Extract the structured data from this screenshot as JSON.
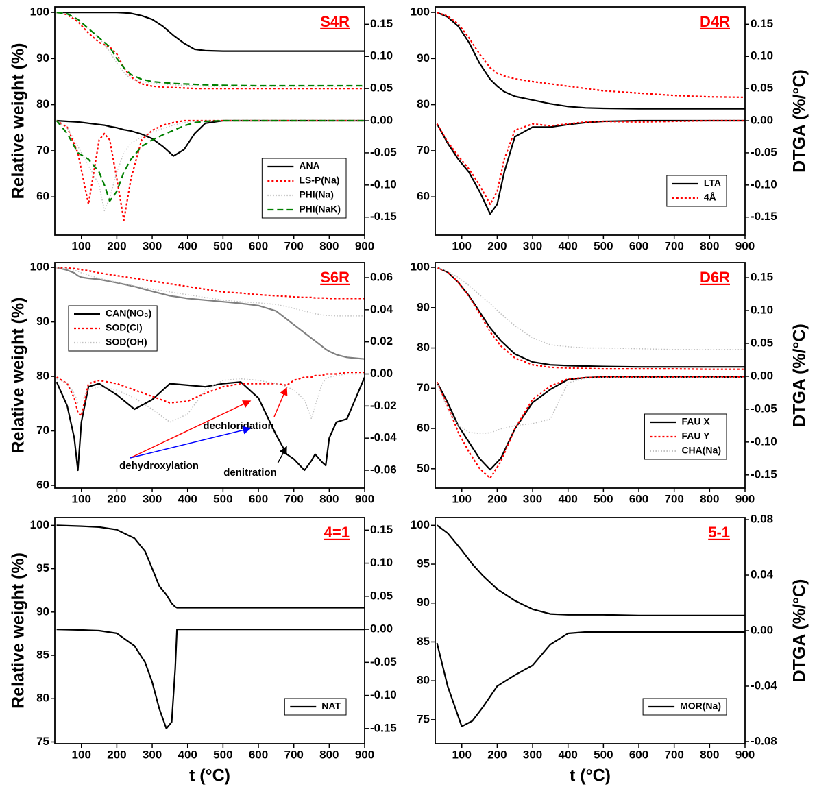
{
  "chart_data": [
    {
      "type": "line",
      "title": "S4R",
      "ylabel": "Relative weight (%)",
      "legend": "lower right",
      "xlim": [
        25,
        900
      ],
      "xticks": [
        100,
        200,
        300,
        400,
        500,
        600,
        700,
        800,
        900
      ],
      "ylim": [
        51.7,
        101.2
      ],
      "yticks": [
        60,
        70,
        80,
        90,
        100
      ],
      "y2lim": [
        -0.178,
        0.177
      ],
      "y2ticks": [
        -0.15,
        {
          "value": -0.1,
          "label": "-0.10"
        },
        -0.05,
        {
          "value": 0,
          "label": "0.00"
        },
        0.05,
        {
          "value": 0.1,
          "label": "0.10"
        },
        0.15
      ],
      "x": [
        30,
        60,
        90,
        120,
        150,
        165,
        180,
        200,
        220,
        240,
        270,
        300,
        330,
        360,
        390,
        420,
        450,
        500,
        600,
        700,
        800,
        900
      ],
      "series": [
        {
          "name": "ANA",
          "color": "#000000",
          "style": "solid",
          "values": [
            100,
            100,
            100,
            100,
            100,
            100,
            100,
            100,
            99.9,
            99.8,
            99.3,
            98.5,
            97,
            95,
            93.3,
            92,
            91.7,
            91.6,
            91.6,
            91.6,
            91.6,
            91.6
          ],
          "dtg_values": [
            0,
            -0.001,
            -0.002,
            -0.004,
            -0.006,
            -0.007,
            -0.009,
            -0.011,
            -0.014,
            -0.016,
            -0.021,
            -0.028,
            -0.04,
            -0.055,
            -0.045,
            -0.02,
            -0.004,
            0,
            0,
            0,
            0,
            0
          ]
        },
        {
          "name": "LS-P(Na)",
          "color": "#ff0000",
          "style": "dot",
          "values": [
            100,
            99.5,
            98,
            95.5,
            93.5,
            93,
            92.5,
            91,
            88,
            86,
            84.5,
            84,
            83.8,
            83.7,
            83.6,
            83.5,
            83.5,
            83.5,
            83.5,
            83.5,
            83.5,
            83.5
          ],
          "dtg_values": [
            0,
            -0.01,
            -0.05,
            -0.13,
            -0.03,
            -0.02,
            -0.03,
            -0.09,
            -0.155,
            -0.09,
            -0.03,
            -0.015,
            -0.007,
            -0.003,
            0,
            0,
            0,
            0,
            0,
            0,
            0,
            0
          ]
        },
        {
          "name": "PHI(Na)",
          "color": "#c0c0c0",
          "style": "fine",
          "values": [
            100,
            99.7,
            98.5,
            96.5,
            94.5,
            93,
            91.5,
            89,
            87,
            85.5,
            85,
            84.7,
            84.5,
            84.3,
            84.2,
            84.1,
            84,
            84,
            84,
            84,
            84,
            84
          ],
          "dtg_values": [
            0,
            -0.01,
            -0.04,
            -0.07,
            -0.1,
            -0.14,
            -0.12,
            -0.08,
            -0.05,
            -0.035,
            -0.025,
            -0.018,
            -0.012,
            -0.007,
            -0.003,
            -0.001,
            0,
            0,
            0,
            0,
            0,
            0
          ]
        },
        {
          "name": "PHI(NaK)",
          "color": "#008000",
          "style": "dash",
          "values": [
            100,
            99.7,
            98.5,
            96.5,
            94.5,
            93.5,
            92.5,
            90,
            88,
            86.5,
            85.5,
            85,
            84.8,
            84.6,
            84.5,
            84.4,
            84.3,
            84.2,
            84.1,
            84.1,
            84.1,
            84.1
          ],
          "dtg_values": [
            0,
            -0.02,
            -0.05,
            -0.06,
            -0.08,
            -0.1,
            -0.125,
            -0.11,
            -0.08,
            -0.06,
            -0.04,
            -0.03,
            -0.022,
            -0.015,
            -0.008,
            -0.003,
            -0.001,
            0,
            0,
            0,
            0,
            0
          ]
        }
      ]
    },
    {
      "type": "line",
      "title": "D4R",
      "y2label": "DTGA (%/°C)",
      "legend": "lower right",
      "xlim": [
        25,
        900
      ],
      "xticks": [
        100,
        200,
        300,
        400,
        500,
        600,
        700,
        800,
        900
      ],
      "ylim": [
        51.7,
        101.2
      ],
      "yticks": [
        60,
        70,
        80,
        90,
        100
      ],
      "y2lim": [
        -0.178,
        0.177
      ],
      "y2ticks": [
        -0.15,
        {
          "value": -0.1,
          "label": "-0.10"
        },
        -0.05,
        {
          "value": 0,
          "label": "0.00"
        },
        0.05,
        {
          "value": 0.1,
          "label": "0.10"
        },
        0.15
      ],
      "x": [
        30,
        60,
        90,
        120,
        150,
        180,
        200,
        220,
        250,
        300,
        350,
        400,
        450,
        500,
        600,
        700,
        800,
        900
      ],
      "series": [
        {
          "name": "LTA",
          "color": "#000000",
          "style": "solid",
          "values": [
            100,
            99,
            97,
            93.5,
            89,
            85.5,
            84,
            82.8,
            81.8,
            81,
            80.2,
            79.6,
            79.3,
            79.2,
            79.1,
            79.1,
            79.1,
            79.1
          ],
          "dtg_values": [
            -0.005,
            -0.035,
            -0.06,
            -0.08,
            -0.11,
            -0.145,
            -0.13,
            -0.08,
            -0.025,
            -0.01,
            -0.01,
            -0.006,
            -0.003,
            -0.001,
            0,
            0,
            0,
            0
          ]
        },
        {
          "name": "4Å",
          "color": "#ff0000",
          "style": "dot",
          "values": [
            100,
            99.2,
            97.5,
            94.5,
            91,
            88,
            86.8,
            86.2,
            85.6,
            85,
            84.5,
            84,
            83.5,
            83,
            82.5,
            82,
            81.7,
            81.6
          ],
          "dtg_values": [
            -0.005,
            -0.033,
            -0.055,
            -0.075,
            -0.1,
            -0.13,
            -0.11,
            -0.06,
            -0.015,
            -0.005,
            -0.008,
            -0.005,
            -0.002,
            -0.001,
            -0.002,
            -0.001,
            0,
            0
          ]
        }
      ]
    },
    {
      "type": "line",
      "title": "S6R",
      "ylabel": "Relative weight (%)",
      "legend": "upper left",
      "xlim": [
        25,
        900
      ],
      "xticks": [
        100,
        200,
        300,
        400,
        500,
        600,
        700,
        800,
        900
      ],
      "ylim": [
        59.5,
        100.9
      ],
      "yticks": [
        60,
        70,
        80,
        90,
        100
      ],
      "y2lim": [
        -0.0711,
        0.0694
      ],
      "y2ticks": [
        -0.06,
        -0.04,
        -0.02,
        {
          "value": 0,
          "label": "0.00"
        },
        0.02,
        0.04,
        0.06
      ],
      "annotations": [
        "dehydroxylation",
        "dechloridation",
        "denitration"
      ],
      "x": [
        30,
        60,
        80,
        90,
        100,
        120,
        150,
        200,
        250,
        300,
        350,
        400,
        450,
        500,
        550,
        600,
        650,
        680,
        700,
        730,
        750,
        760,
        780,
        790,
        800,
        820,
        850,
        900
      ],
      "series": [
        {
          "name": "CAN(NO₃)",
          "color": "#000000",
          "tg_color": "#808080",
          "style": "solid",
          "values": [
            100,
            99.5,
            99,
            98.5,
            98.2,
            98,
            97.8,
            97.2,
            96.5,
            95.6,
            94.8,
            94.3,
            94,
            93.7,
            93.4,
            93,
            92,
            90.5,
            89.5,
            88,
            87,
            86.5,
            85.5,
            85,
            84.6,
            84,
            83.5,
            83.2
          ],
          "dtg_values": [
            -0.005,
            -0.02,
            -0.04,
            -0.06,
            -0.03,
            -0.008,
            -0.006,
            -0.013,
            -0.022,
            -0.016,
            -0.006,
            -0.007,
            -0.008,
            -0.006,
            -0.005,
            -0.015,
            -0.038,
            -0.05,
            -0.053,
            -0.06,
            -0.054,
            -0.05,
            -0.055,
            -0.057,
            -0.04,
            -0.03,
            -0.028,
            -0.002
          ]
        },
        {
          "name": "SOD(Cl)",
          "color": "#ff0000",
          "style": "dot",
          "values": [
            100,
            99.9,
            99.8,
            99.7,
            99.6,
            99.4,
            99,
            98.5,
            98,
            97.5,
            97,
            96.5,
            96,
            95.5,
            95.3,
            95,
            94.8,
            94.7,
            94.6,
            94.5,
            94.5,
            94.4,
            94.4,
            94.4,
            94.3,
            94.3,
            94.3,
            94.3
          ],
          "dtg_values": [
            -0.002,
            -0.006,
            -0.015,
            -0.024,
            -0.026,
            -0.006,
            -0.004,
            -0.006,
            -0.01,
            -0.014,
            -0.018,
            -0.017,
            -0.012,
            -0.008,
            -0.006,
            -0.006,
            -0.006,
            -0.007,
            -0.004,
            -0.002,
            -0.002,
            -0.001,
            -0.001,
            0,
            0,
            0,
            0.001,
            0.001
          ]
        },
        {
          "name": "SOD(OH)",
          "color": "#c0c0c0",
          "style": "fine",
          "values": [
            100,
            99.8,
            99.5,
            99.3,
            99,
            98.6,
            98,
            97.3,
            96.6,
            96,
            95.5,
            95,
            94.5,
            94,
            93.7,
            93.5,
            93.2,
            92.8,
            92.5,
            92,
            91.7,
            91.5,
            91.3,
            91.2,
            91.2,
            91.1,
            91.1,
            91.1
          ],
          "dtg_values": [
            -0.003,
            -0.006,
            -0.012,
            -0.018,
            -0.017,
            -0.01,
            -0.008,
            -0.01,
            -0.015,
            -0.022,
            -0.03,
            -0.025,
            -0.01,
            -0.004,
            -0.003,
            -0.004,
            -0.006,
            -0.008,
            -0.01,
            -0.016,
            -0.028,
            -0.02,
            -0.006,
            -0.003,
            -0.002,
            -0.001,
            0,
            0
          ]
        }
      ]
    },
    {
      "type": "line",
      "title": "D6R",
      "y2label": "DTGA (%/°C)",
      "legend": "lower right",
      "xlim": [
        25,
        900
      ],
      "xticks": [
        100,
        200,
        300,
        400,
        500,
        600,
        700,
        800,
        900
      ],
      "ylim": [
        45.2,
        101.2
      ],
      "yticks": [
        50,
        60,
        70,
        80,
        90,
        100
      ],
      "y2lim": [
        -0.17,
        0.173
      ],
      "y2ticks": [
        -0.15,
        {
          "value": -0.1,
          "label": "-0.10"
        },
        -0.05,
        {
          "value": 0,
          "label": "0.00"
        },
        0.05,
        {
          "value": 0.1,
          "label": "0.10"
        },
        0.15
      ],
      "x": [
        30,
        60,
        90,
        120,
        150,
        180,
        210,
        250,
        300,
        350,
        400,
        450,
        500,
        600,
        700,
        800,
        900
      ],
      "series": [
        {
          "name": "FAU X",
          "color": "#000000",
          "style": "solid",
          "values": [
            100,
            98.8,
            96.3,
            93,
            89,
            85,
            81.8,
            78.5,
            76.5,
            75.8,
            75.6,
            75.5,
            75.4,
            75.3,
            75.3,
            75.3,
            75.3
          ],
          "dtg_values": [
            -0.009,
            -0.04,
            -0.075,
            -0.1,
            -0.125,
            -0.142,
            -0.125,
            -0.08,
            -0.04,
            -0.02,
            -0.005,
            -0.002,
            -0.001,
            -0.001,
            -0.001,
            -0.001,
            -0.001
          ]
        },
        {
          "name": "FAU Y",
          "color": "#ff0000",
          "style": "dot",
          "values": [
            100,
            98.8,
            96.3,
            92.8,
            88.5,
            84,
            80.5,
            77.5,
            75.8,
            75.2,
            75,
            74.9,
            74.8,
            74.8,
            74.8,
            74.7,
            74.7
          ],
          "dtg_values": [
            -0.009,
            -0.045,
            -0.085,
            -0.115,
            -0.14,
            -0.155,
            -0.13,
            -0.08,
            -0.035,
            -0.015,
            -0.004,
            -0.002,
            -0.001,
            -0.001,
            -0.001,
            -0.001,
            -0.001
          ]
        },
        {
          "name": "CHA(Na)",
          "color": "#c0c0c0",
          "style": "fine",
          "values": [
            100,
            99,
            97.5,
            95.5,
            93.2,
            91,
            88.5,
            85.5,
            82.5,
            80.8,
            80.3,
            80,
            80,
            79.8,
            79.6,
            79.6,
            79.6
          ],
          "dtg_values": [
            -0.01,
            -0.05,
            -0.075,
            -0.085,
            -0.087,
            -0.086,
            -0.08,
            -0.075,
            -0.072,
            -0.065,
            -0.01,
            -0.003,
            -0.002,
            -0.002,
            -0.002,
            -0.002,
            -0.002
          ]
        }
      ]
    },
    {
      "type": "line",
      "title": "4=1",
      "ylabel": "Relative weight (%)",
      "xlabel": "t (°C)",
      "legend": "lower right",
      "xlim": [
        25,
        900
      ],
      "xticks": [
        100,
        200,
        300,
        400,
        500,
        600,
        700,
        800,
        900
      ],
      "ylim": [
        74.8,
        100.9
      ],
      "yticks": [
        75,
        80,
        85,
        90,
        95,
        100
      ],
      "y2lim": [
        -0.173,
        0.169
      ],
      "y2ticks": [
        -0.15,
        {
          "value": -0.1,
          "label": "-0.10"
        },
        -0.05,
        {
          "value": 0,
          "label": "0.00"
        },
        0.05,
        {
          "value": 0.1,
          "label": "0.10"
        },
        0.15
      ],
      "x": [
        30,
        100,
        150,
        200,
        250,
        280,
        300,
        320,
        340,
        355,
        365,
        370,
        400,
        500,
        600,
        700,
        800,
        900
      ],
      "series": [
        {
          "name": "NAT",
          "color": "#000000",
          "style": "solid",
          "values": [
            100,
            99.9,
            99.8,
            99.5,
            98.5,
            97,
            95,
            93,
            92,
            91,
            90.6,
            90.5,
            90.5,
            90.5,
            90.5,
            90.5,
            90.5,
            90.5
          ],
          "dtg_values": [
            0,
            -0.001,
            -0.002,
            -0.006,
            -0.025,
            -0.05,
            -0.08,
            -0.12,
            -0.15,
            -0.14,
            -0.06,
            0,
            0,
            0,
            0,
            0,
            0,
            0
          ]
        }
      ]
    },
    {
      "type": "line",
      "title": "5-1",
      "y2label": "DTGA (%/°C)",
      "xlabel": "t (°C)",
      "legend": "lower right",
      "xlim": [
        25,
        900
      ],
      "xticks": [
        100,
        200,
        300,
        400,
        500,
        600,
        700,
        800,
        900
      ],
      "ylim": [
        71.9,
        101
      ],
      "yticks": [
        75,
        80,
        85,
        90,
        95,
        100
      ],
      "y2lim": [
        -0.0815,
        0.0815
      ],
      "y2ticks": [
        -0.08,
        -0.04,
        {
          "value": 0,
          "label": "0.00"
        },
        0.04,
        0.08
      ],
      "x": [
        30,
        60,
        100,
        130,
        160,
        200,
        250,
        300,
        350,
        400,
        450,
        500,
        600,
        700,
        800,
        900
      ],
      "series": [
        {
          "name": "MOR(Na)",
          "color": "#000000",
          "style": "solid",
          "values": [
            100,
            99,
            96.8,
            95,
            93.5,
            91.8,
            90.3,
            89.2,
            88.6,
            88.5,
            88.5,
            88.5,
            88.4,
            88.4,
            88.4,
            88.4
          ],
          "dtg_values": [
            -0.009,
            -0.04,
            -0.069,
            -0.065,
            -0.055,
            -0.04,
            -0.032,
            -0.025,
            -0.01,
            -0.002,
            -0.001,
            -0.001,
            -0.001,
            -0.001,
            -0.001,
            -0.001
          ]
        }
      ]
    }
  ]
}
